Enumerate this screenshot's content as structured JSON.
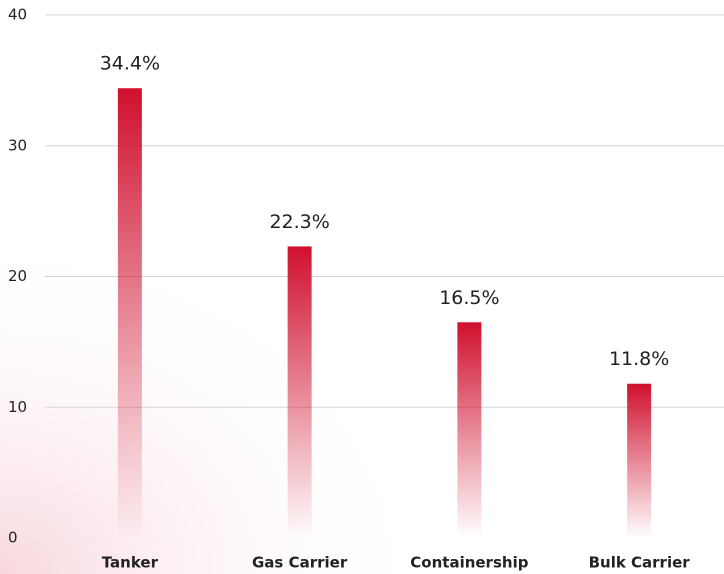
{
  "chart_data": {
    "type": "bar",
    "categories": [
      "Tanker",
      "Gas Carrier",
      "Containership",
      "Bulk Carrier"
    ],
    "values": [
      34.4,
      22.3,
      16.5,
      11.8
    ],
    "value_labels": [
      "34.4%",
      "22.3%",
      "16.5%",
      "11.8%"
    ],
    "color": "#d0102e",
    "ylim": [
      0,
      40
    ],
    "yticks": [
      0,
      10,
      20,
      30,
      40
    ],
    "grid": true
  }
}
